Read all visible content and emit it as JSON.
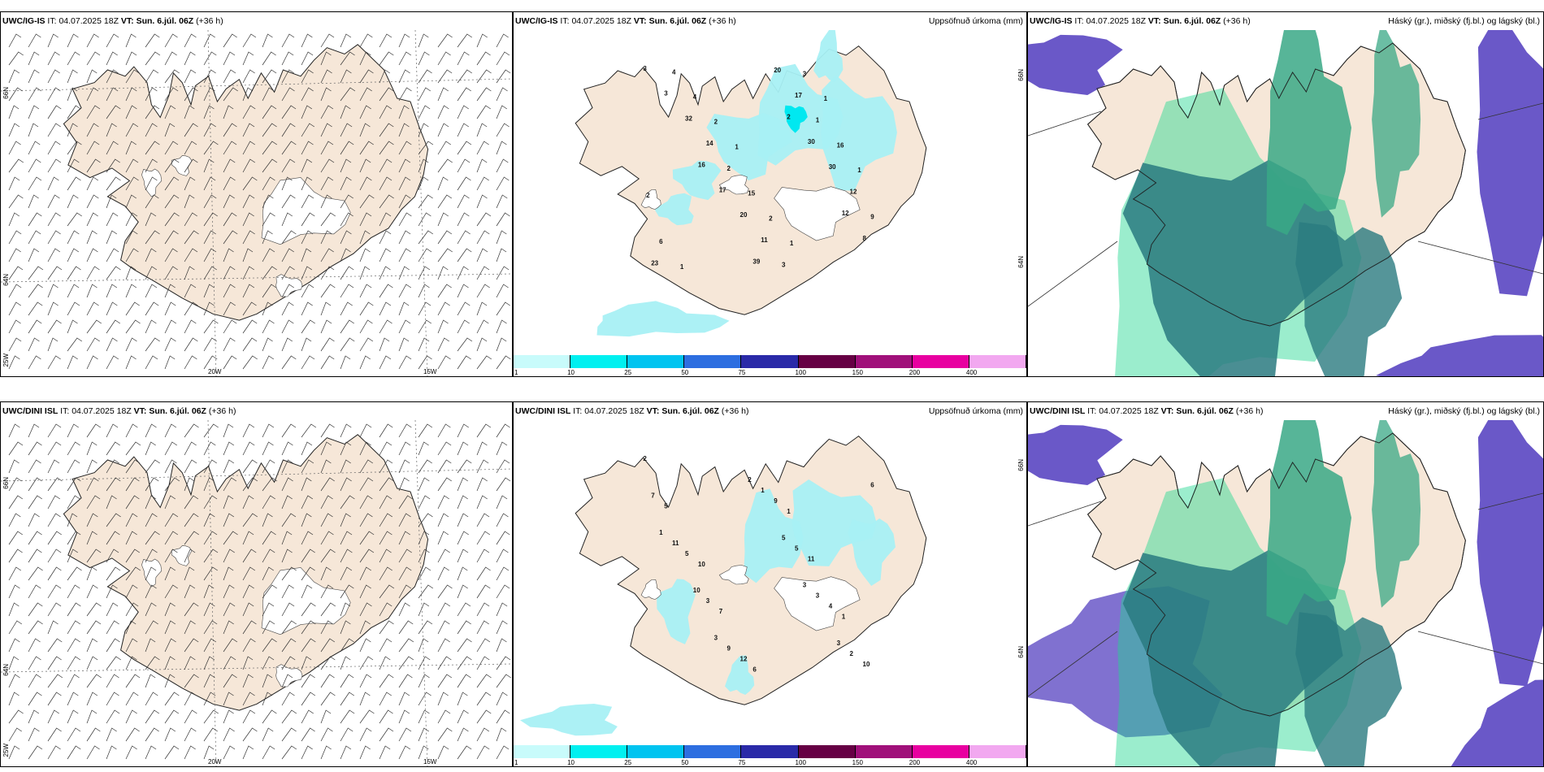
{
  "panels": [
    {
      "id": "r1c1",
      "model": "UWC/IG-IS",
      "it_label": "IT:",
      "it": "04.07.2025 18Z",
      "vt_label": "VT:",
      "vt": "Sun. 6.júl. 06Z",
      "lead": "(+36 h)",
      "right_title": ""
    },
    {
      "id": "r1c2",
      "model": "UWC/IG-IS",
      "it_label": "IT:",
      "it": "04.07.2025 18Z",
      "vt_label": "VT:",
      "vt": "Sun. 6.júl. 06Z",
      "lead": "(+36 h)",
      "right_title": "Uppsöfnuð úrkoma (mm)"
    },
    {
      "id": "r1c3",
      "model": "UWC/IG-IS",
      "it_label": "IT:",
      "it": "04.07.2025 18Z",
      "vt_label": "VT:",
      "vt": "Sun. 6.júl. 06Z",
      "lead": "(+36 h)",
      "right_title": "Háský (gr.), miðský (fj.bl.) og lágský (bl.)"
    },
    {
      "id": "r2c1",
      "model": "UWC/DINI ISL",
      "it_label": "IT:",
      "it": "04.07.2025 18Z",
      "vt_label": "VT:",
      "vt": "Sun. 6.júl. 06Z",
      "lead": "(+36 h)",
      "right_title": ""
    },
    {
      "id": "r2c2",
      "model": "UWC/DINI ISL",
      "it_label": "IT:",
      "it": "04.07.2025 18Z",
      "vt_label": "VT:",
      "vt": "Sun. 6.júl. 06Z",
      "lead": "(+36 h)",
      "right_title": "Uppsöfnuð úrkoma (mm)"
    },
    {
      "id": "r2c3",
      "model": "UWC/DINI ISL",
      "it_label": "IT:",
      "it": "04.07.2025 18Z",
      "vt_label": "VT:",
      "vt": "Sun. 6.júl. 06Z",
      "lead": "(+36 h)",
      "right_title": "Háský (gr.), miðský (fj.bl.) og lágský (bl.)"
    }
  ],
  "coords": {
    "lon_west": "20W",
    "lon_east": "15W",
    "lat_north": "66N",
    "lat_south": "64N",
    "lat_left_lower": "25W"
  },
  "precip_colorbar": {
    "labels": [
      "1",
      "10",
      "25",
      "50",
      "75",
      "100",
      "150",
      "200",
      "400"
    ],
    "colors": [
      "#c8fbfb",
      "#00f0f0",
      "#00c4f0",
      "#2d6ee0",
      "#2a2aa8",
      "#660044",
      "#a0107a",
      "#e800a0",
      "#f2a8f0"
    ]
  },
  "precip_values_r1": [
    "3",
    "2",
    "16",
    "12",
    "39",
    "3",
    "30",
    "17",
    "8",
    "20",
    "32",
    "30",
    "20",
    "23",
    "17",
    "14",
    "12",
    "11",
    "4",
    "1",
    "2",
    "9",
    "3",
    "4",
    "16",
    "15",
    "6",
    "3",
    "2",
    "1",
    "2",
    "1",
    "1",
    "1",
    "2",
    "1"
  ],
  "precip_values_r2": [
    "2",
    "1",
    "10",
    "1",
    "6",
    "5",
    "11",
    "7",
    "10",
    "9",
    "5",
    "4",
    "12",
    "7",
    "5",
    "3",
    "2",
    "1",
    "11",
    "3",
    "9",
    "6",
    "5",
    "10",
    "3",
    "2",
    "1",
    "3",
    "3"
  ],
  "colors": {
    "land": "#f6e7d8",
    "precip_light": "#a8f0f4",
    "precip_mid": "#00e8f0",
    "cloud_high": "#3aa886",
    "cloud_mid": "#2a7a80",
    "cloud_low": "#6a58c8",
    "cloud_edge": "#22d890"
  }
}
